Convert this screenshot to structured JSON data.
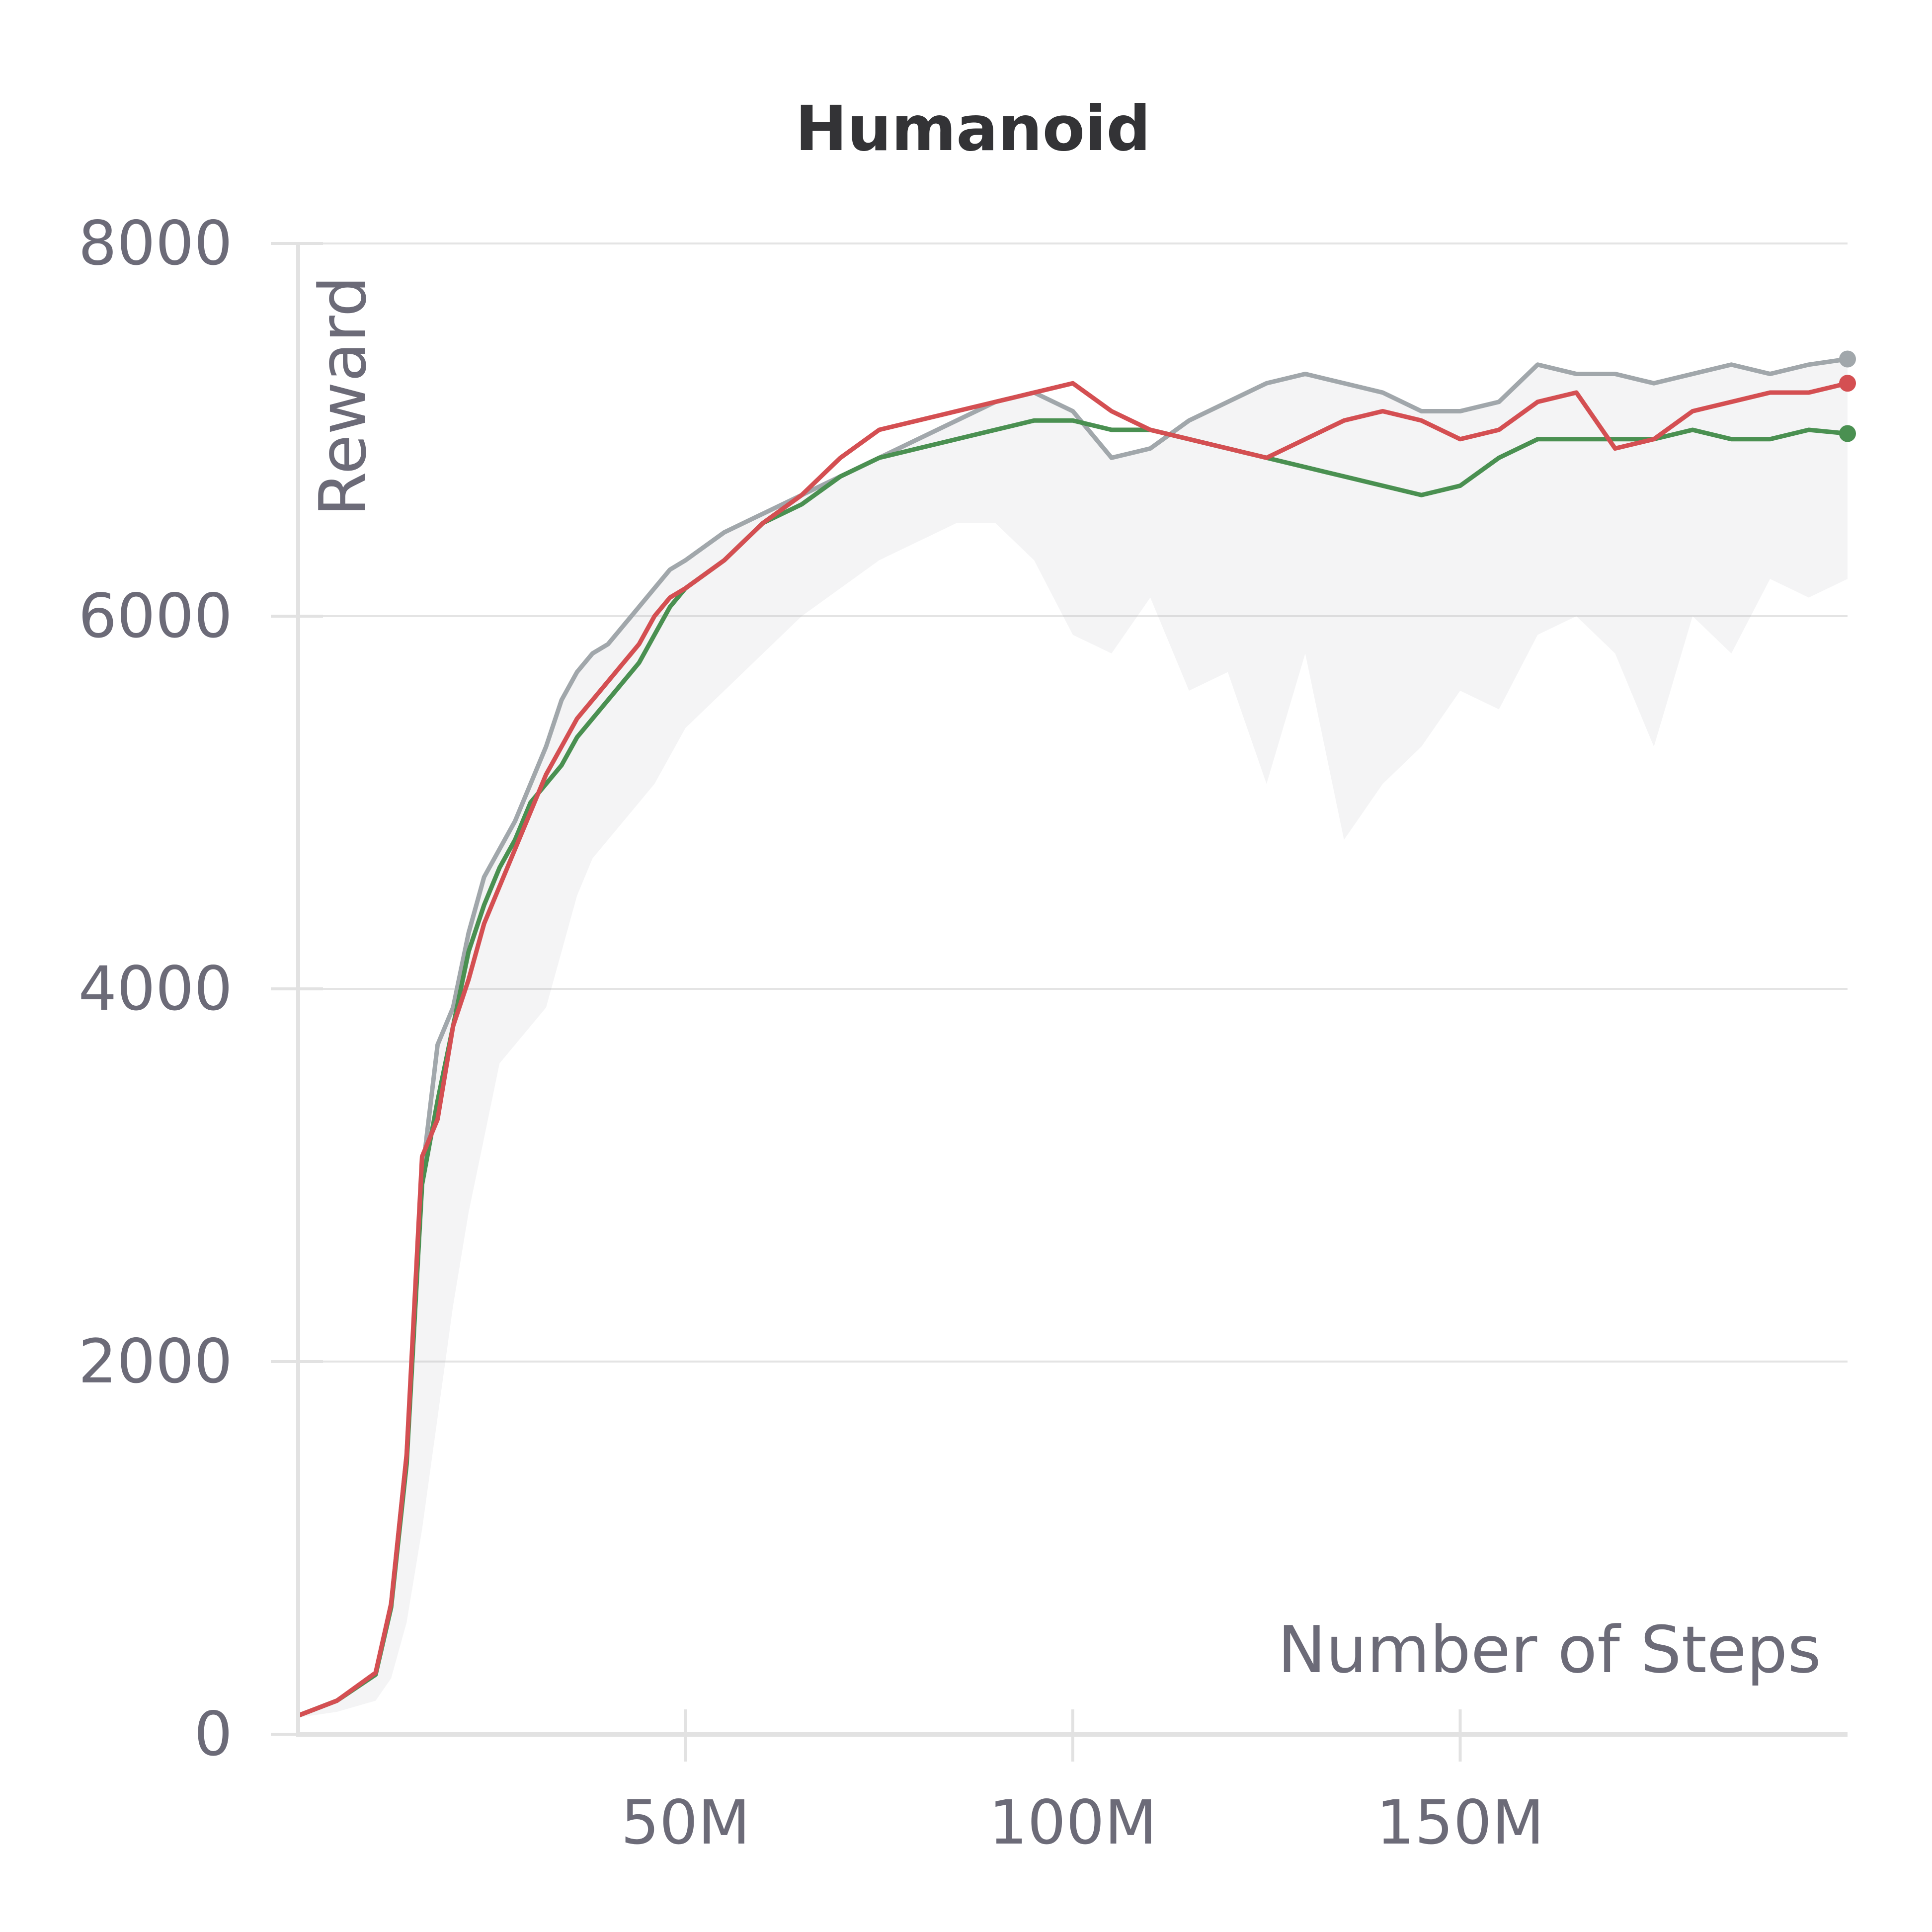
{
  "chart_data": {
    "type": "line",
    "title": "Humanoid",
    "xlabel": "Number of Steps",
    "ylabel": "Reward",
    "xlim": [
      0,
      200000000
    ],
    "ylim": [
      0,
      8000
    ],
    "x_ticks": [
      {
        "value": 50000000,
        "label": "50M"
      },
      {
        "value": 100000000,
        "label": "100M"
      },
      {
        "value": 150000000,
        "label": "150M"
      }
    ],
    "y_ticks": [
      {
        "value": 0,
        "label": "0"
      },
      {
        "value": 2000,
        "label": "2000"
      },
      {
        "value": 4000,
        "label": "4000"
      },
      {
        "value": 6000,
        "label": "6000"
      },
      {
        "value": 8000,
        "label": "8000"
      }
    ],
    "grid": "horizontal",
    "series": [
      {
        "color": "#a1a7ab",
        "x": [
          0,
          5000000,
          10000000,
          12000000,
          14000000,
          16000000,
          18000000,
          20000000,
          22000000,
          24000000,
          26000000,
          28000000,
          30000000,
          32000000,
          34000000,
          36000000,
          38000000,
          40000000,
          42000000,
          44000000,
          46000000,
          48000000,
          50000000,
          55000000,
          60000000,
          65000000,
          70000000,
          75000000,
          80000000,
          85000000,
          90000000,
          95000000,
          100000000,
          105000000,
          110000000,
          115000000,
          120000000,
          125000000,
          130000000,
          135000000,
          140000000,
          145000000,
          150000000,
          155000000,
          160000000,
          165000000,
          170000000,
          175000000,
          180000000,
          185000000,
          190000000,
          195000000,
          200000000
        ],
        "y": [
          100,
          180,
          320,
          700,
          1500,
          3000,
          3700,
          3900,
          4300,
          4600,
          4750,
          4900,
          5100,
          5300,
          5550,
          5700,
          5800,
          5850,
          5950,
          6050,
          6150,
          6250,
          6300,
          6450,
          6550,
          6650,
          6750,
          6850,
          6950,
          7050,
          7150,
          7200,
          7100,
          6850,
          6900,
          7050,
          7150,
          7250,
          7300,
          7250,
          7200,
          7100,
          7100,
          7150,
          7350,
          7300,
          7300,
          7250,
          7300,
          7350,
          7300,
          7350,
          7380
        ],
        "lower": [
          90,
          120,
          180,
          300,
          600,
          1100,
          1700,
          2300,
          2800,
          3200,
          3600,
          3700,
          3800,
          3900,
          4200,
          4500,
          4700,
          4800,
          4900,
          5000,
          5100,
          5250,
          5400,
          5600,
          5800,
          6000,
          6150,
          6300,
          6400,
          6500,
          6500,
          6300,
          5900,
          5800,
          6100,
          5600,
          5700,
          5100,
          5800,
          4800,
          5100,
          5300,
          5600,
          5500,
          5900,
          6000,
          5800,
          5300,
          6000,
          5800,
          6200,
          6100,
          6200
        ]
      },
      {
        "color": "#4a9051",
        "x": [
          0,
          5000000,
          10000000,
          12000000,
          14000000,
          16000000,
          18000000,
          20000000,
          22000000,
          24000000,
          26000000,
          28000000,
          30000000,
          32000000,
          34000000,
          36000000,
          38000000,
          40000000,
          42000000,
          44000000,
          46000000,
          48000000,
          50000000,
          55000000,
          60000000,
          65000000,
          70000000,
          75000000,
          80000000,
          85000000,
          90000000,
          95000000,
          100000000,
          105000000,
          110000000,
          115000000,
          120000000,
          125000000,
          130000000,
          135000000,
          140000000,
          145000000,
          150000000,
          155000000,
          160000000,
          165000000,
          170000000,
          175000000,
          180000000,
          185000000,
          190000000,
          195000000,
          200000000
        ],
        "y": [
          100,
          180,
          320,
          680,
          1450,
          2950,
          3400,
          3800,
          4200,
          4450,
          4650,
          4800,
          5000,
          5100,
          5200,
          5350,
          5450,
          5550,
          5650,
          5750,
          5900,
          6050,
          6150,
          6300,
          6500,
          6600,
          6750,
          6850,
          6900,
          6950,
          7000,
          7050,
          7050,
          7000,
          7000,
          6950,
          6900,
          6850,
          6800,
          6750,
          6700,
          6650,
          6700,
          6850,
          6950,
          6950,
          6950,
          6950,
          7000,
          6950,
          6950,
          7000,
          6980
        ]
      },
      {
        "color": "#d44f52",
        "x": [
          0,
          5000000,
          10000000,
          12000000,
          14000000,
          16000000,
          18000000,
          20000000,
          22000000,
          24000000,
          26000000,
          28000000,
          30000000,
          32000000,
          34000000,
          36000000,
          38000000,
          40000000,
          42000000,
          44000000,
          46000000,
          48000000,
          50000000,
          55000000,
          60000000,
          65000000,
          70000000,
          75000000,
          80000000,
          85000000,
          90000000,
          95000000,
          100000000,
          105000000,
          110000000,
          115000000,
          120000000,
          125000000,
          130000000,
          135000000,
          140000000,
          145000000,
          150000000,
          155000000,
          160000000,
          165000000,
          170000000,
          175000000,
          180000000,
          185000000,
          190000000,
          195000000,
          200000000
        ],
        "y": [
          100,
          180,
          330,
          700,
          1500,
          3100,
          3300,
          3800,
          4050,
          4350,
          4550,
          4750,
          4950,
          5150,
          5300,
          5450,
          5550,
          5650,
          5750,
          5850,
          6000,
          6100,
          6150,
          6300,
          6500,
          6650,
          6850,
          7000,
          7050,
          7100,
          7150,
          7200,
          7250,
          7100,
          7000,
          6950,
          6900,
          6850,
          6950,
          7050,
          7100,
          7050,
          6950,
          7000,
          7150,
          7200,
          6900,
          6950,
          7100,
          7150,
          7200,
          7200,
          7250
        ]
      }
    ]
  }
}
